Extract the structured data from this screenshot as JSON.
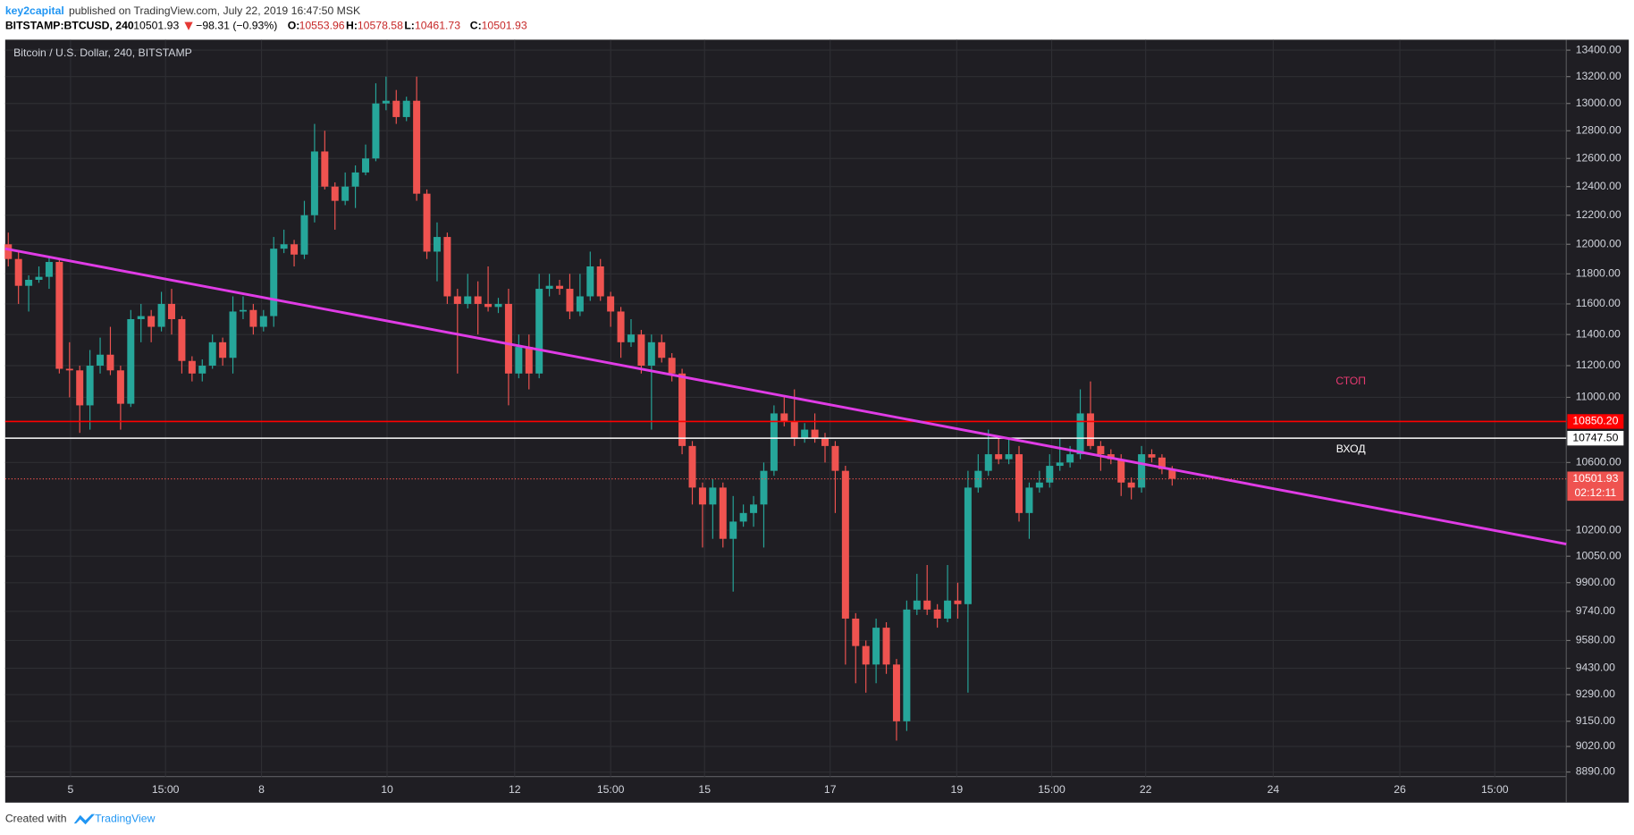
{
  "header": {
    "author": "key2capital",
    "published": "published on TradingView.com, July 22, 2019 16:47:50 MSK",
    "symbol": "BITSTAMP:BTCUSD, 240",
    "change": "−98.31 (−0.93%)",
    "o_label": "O:",
    "h_label": "H:",
    "l_label": "L:",
    "c_label": "C:"
  },
  "footer": {
    "created": "Created with",
    "brand": "TradingView"
  },
  "chart_data": {
    "type": "candlestick",
    "title": "Bitcoin / U.S. Dollar, 240, BITSTAMP",
    "up_color": "#26a69a",
    "down_color": "#ef5350",
    "log": true,
    "grid": true,
    "open": [
      12000,
      11900,
      11720,
      11760,
      11780,
      11880,
      11180,
      11170,
      10950,
      11200,
      11270,
      11170,
      10960,
      11500,
      11520,
      11450,
      11600,
      11500,
      11230,
      11150,
      11200,
      11350,
      11250,
      11550,
      11560,
      11450,
      11520,
      11970,
      12000,
      11930,
      12200,
      12650,
      12400,
      12300,
      12400,
      12500,
      12600,
      13000,
      13020,
      12900,
      13020,
      12350,
      11950,
      12050,
      11650,
      11600,
      11650,
      11600,
      11580,
      11600,
      11150,
      11320,
      11150,
      11700,
      11720,
      11700,
      11550,
      11650,
      11850,
      11650,
      11550,
      11350,
      11400,
      11200,
      11350,
      11250,
      11150,
      10700,
      10450,
      10350,
      10450,
      10150,
      10250,
      10300,
      10350,
      10550,
      10900,
      10850,
      10750,
      10800,
      10750,
      10700,
      10550,
      9700,
      9550,
      9450,
      9650,
      9450,
      9150,
      9750,
      9800,
      9750,
      9700,
      9800,
      9780,
      10450,
      10550,
      10650,
      10620,
      10650,
      10300,
      10450,
      10480,
      10580,
      10600,
      10650,
      10900,
      10700,
      10650,
      10620,
      10480,
      10450,
      10650,
      10630,
      10553.96
    ],
    "high": [
      12080,
      11950,
      11790,
      11850,
      11920,
      11900,
      11350,
      11200,
      11300,
      11380,
      11450,
      11200,
      11560,
      11600,
      11560,
      11680,
      11700,
      11520,
      11260,
      11240,
      11400,
      11380,
      11650,
      11650,
      11600,
      11560,
      12050,
      12100,
      12030,
      12300,
      12850,
      12800,
      12430,
      12500,
      12550,
      12700,
      13150,
      13200,
      13100,
      13050,
      13200,
      12380,
      12150,
      12080,
      11700,
      11800,
      11750,
      11850,
      11640,
      11700,
      11400,
      11400,
      11800,
      11800,
      11760,
      11800,
      11800,
      11950,
      11900,
      11680,
      11580,
      11500,
      11430,
      11400,
      11400,
      11280,
      11180,
      10730,
      10480,
      10500,
      10480,
      10400,
      10350,
      10400,
      10600,
      10950,
      11000,
      11050,
      10840,
      10900,
      10780,
      10730,
      10580,
      9730,
      9580,
      9700,
      9680,
      9480,
      9800,
      9950,
      10000,
      9780,
      10000,
      9900,
      10550,
      10650,
      10800,
      10750,
      10750,
      10700,
      10480,
      10550,
      10650,
      10750,
      10700,
      11050,
      11100,
      10730,
      10680,
      10650,
      10510,
      10700,
      10680,
      10650,
      10578.58
    ],
    "low": [
      11850,
      11600,
      11550,
      11740,
      11700,
      11150,
      11000,
      10780,
      10800,
      11150,
      11140,
      10800,
      10940,
      11350,
      11350,
      11420,
      11400,
      11150,
      11100,
      11100,
      11180,
      11200,
      11150,
      11500,
      11400,
      11420,
      11450,
      11940,
      11850,
      11900,
      12150,
      12380,
      12100,
      12270,
      12250,
      12480,
      12580,
      12950,
      12850,
      12870,
      12300,
      11900,
      11750,
      11600,
      11150,
      11570,
      11400,
      11550,
      11540,
      10950,
      11120,
      11050,
      11120,
      11650,
      11660,
      11500,
      11520,
      11620,
      11620,
      11450,
      11250,
      11320,
      11150,
      10800,
      11220,
      11100,
      10650,
      10350,
      10100,
      10150,
      10100,
      9850,
      10220,
      10220,
      10100,
      10520,
      10820,
      10700,
      10720,
      10720,
      10600,
      10300,
      9450,
      9350,
      9300,
      9350,
      9400,
      9050,
      9100,
      9720,
      9720,
      9650,
      9680,
      9700,
      9300,
      10420,
      10520,
      10590,
      10590,
      10250,
      10150,
      10420,
      10450,
      10550,
      10570,
      10620,
      10680,
      10550,
      10590,
      10400,
      10380,
      10420,
      10600,
      10530,
      10461.73
    ],
    "close": [
      11900,
      11720,
      11760,
      11780,
      11880,
      11180,
      11170,
      10950,
      11200,
      11270,
      11170,
      10960,
      11500,
      11520,
      11450,
      11600,
      11500,
      11230,
      11150,
      11200,
      11350,
      11250,
      11550,
      11560,
      11450,
      11520,
      11970,
      12000,
      11930,
      12200,
      12650,
      12400,
      12300,
      12400,
      12500,
      12600,
      13000,
      13020,
      12900,
      13020,
      12350,
      11950,
      12050,
      11650,
      11600,
      11650,
      11600,
      11580,
      11600,
      11150,
      11320,
      11150,
      11700,
      11720,
      11700,
      11550,
      11650,
      11850,
      11650,
      11550,
      11350,
      11400,
      11200,
      11350,
      11250,
      11150,
      10700,
      10450,
      10350,
      10450,
      10150,
      10250,
      10300,
      10350,
      10550,
      10900,
      10850,
      10750,
      10800,
      10750,
      10700,
      10550,
      9700,
      9550,
      9450,
      9650,
      9450,
      9150,
      9750,
      9800,
      9750,
      9700,
      9800,
      9780,
      10450,
      10550,
      10650,
      10620,
      10650,
      10300,
      10450,
      10480,
      10580,
      10600,
      10650,
      10900,
      10700,
      10650,
      10620,
      10480,
      10450,
      10650,
      10630,
      10560,
      10501.93
    ],
    "xlim": [
      -0.3,
      152.6
    ],
    "xticks": [
      {
        "value": 6.1,
        "label": "5"
      },
      {
        "value": 15.4,
        "label": "15:00"
      },
      {
        "value": 24.8,
        "label": "8"
      },
      {
        "value": 37.1,
        "label": "10"
      },
      {
        "value": 49.6,
        "label": "12"
      },
      {
        "value": 59.0,
        "label": "15:00"
      },
      {
        "value": 68.2,
        "label": "15"
      },
      {
        "value": 80.5,
        "label": "17"
      },
      {
        "value": 92.9,
        "label": "19"
      },
      {
        "value": 102.2,
        "label": "15:00"
      },
      {
        "value": 111.4,
        "label": "22"
      },
      {
        "value": 123.9,
        "label": "24"
      },
      {
        "value": 136.3,
        "label": "26"
      },
      {
        "value": 145.6,
        "label": "15:00"
      }
    ],
    "ylim": [
      8867,
      13480
    ],
    "yticks": [
      {
        "value": 13400,
        "label": "13400.00"
      },
      {
        "value": 13200,
        "label": "13200.00"
      },
      {
        "value": 13000,
        "label": "13000.00"
      },
      {
        "value": 12800,
        "label": "12800.00"
      },
      {
        "value": 12600,
        "label": "12600.00"
      },
      {
        "value": 12400,
        "label": "12400.00"
      },
      {
        "value": 12200,
        "label": "12200.00"
      },
      {
        "value": 12000,
        "label": "12000.00"
      },
      {
        "value": 11800,
        "label": "11800.00"
      },
      {
        "value": 11600,
        "label": "11600.00"
      },
      {
        "value": 11400,
        "label": "11400.00"
      },
      {
        "value": 11200,
        "label": "11200.00"
      },
      {
        "value": 11000,
        "label": "11000.00"
      },
      {
        "value": 10600,
        "label": "10600.00"
      },
      {
        "value": 10200,
        "label": "10200.00"
      },
      {
        "value": 10050,
        "label": "10050.00"
      },
      {
        "value": 9900,
        "label": "9900.00"
      },
      {
        "value": 9740,
        "label": "9740.00"
      },
      {
        "value": 9580,
        "label": "9580.00"
      },
      {
        "value": 9430,
        "label": "9430.00"
      },
      {
        "value": 9290,
        "label": "9290.00"
      },
      {
        "value": 9150,
        "label": "9150.00"
      },
      {
        "value": 9020,
        "label": "9020.00"
      },
      {
        "value": 8890,
        "label": "8890.00"
      }
    ],
    "trendline": {
      "x": [
        -0.3,
        152.6
      ],
      "y": [
        11970,
        10120
      ],
      "color": "#e03ce6"
    },
    "hlines": [
      {
        "value": 10850.2,
        "label": "10850.20",
        "color": "#ff0000",
        "text_color": "#ffffff"
      },
      {
        "value": 10747.5,
        "label": "10747.50",
        "color": "#ffffff",
        "text_color": "#000000"
      }
    ],
    "last_price_color": "#ef5350",
    "countdown": "02:12:11",
    "annotations": [
      {
        "text": "СТОП",
        "x": 131.5,
        "y": 11100,
        "color": "#e53970"
      },
      {
        "text": "ВХОД",
        "x": 131.5,
        "y": 10680,
        "color": "#ffffff"
      }
    ]
  }
}
